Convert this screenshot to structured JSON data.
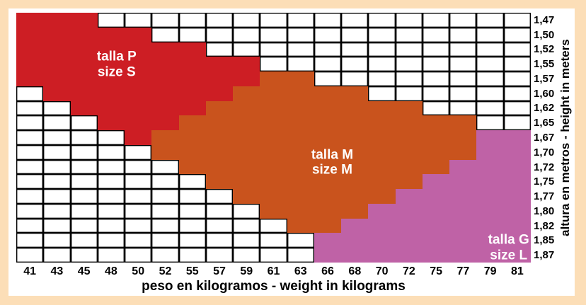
{
  "chart_data": {
    "type": "heatmap",
    "title": "",
    "xlabel": "peso en kilogramos - weight in kilograms",
    "ylabel": "altura en metros - height in meters",
    "x_categories": [
      "41",
      "43",
      "45",
      "48",
      "50",
      "52",
      "55",
      "57",
      "59",
      "61",
      "63",
      "66",
      "68",
      "70",
      "72",
      "75",
      "77",
      "79",
      "81"
    ],
    "y_categories": [
      "1,47",
      "1,50",
      "1,52",
      "1,55",
      "1,57",
      "1,60",
      "1,62",
      "1,65",
      "1,67",
      "1,70",
      "1,72",
      "1,75",
      "1,77",
      "1,80",
      "1,82",
      "1,85",
      "1,87"
    ],
    "grid_lines": true,
    "legend_position": "inside-regions",
    "colors": {
      "S": "#cd1e24",
      "M": "#c9531d",
      "L": "#bf62a6",
      "empty": "#ffffff",
      "grid": "#000000",
      "frame_background": "#fcdeb7",
      "panel_background": "#ffffff",
      "region_label_text": "#ffffff",
      "axis_text": "#000000"
    },
    "grid": [
      "SSS................",
      "SSSSS..............",
      "SSSSSSS............",
      "SSSSSSSSS..........",
      "SSSSSSSSSMM........",
      ".SSSSSSSMMMMM......",
      "..SSSSSMMMMMMMM....",
      "...SSSMMMMMMMMMMM..",
      "....SMMMMMMMMMMMMLL",
      ".....MMMMMMMMMMMMLL",
      "......MMMMMMMMMMLLL",
      ".......MMMMMMMMLLLL",
      "........MMMMMMLLLLL",
      ".........MMMMLLLLLL",
      "..........MMLLLLLLL",
      "...........LLLLLLLL",
      "...........LLLLLLLL"
    ],
    "regions": [
      {
        "code": "S",
        "label_line1": "talla P",
        "label_line2": "size S",
        "color": "#cd1e24"
      },
      {
        "code": "M",
        "label_line1": "talla M",
        "label_line2": "size M",
        "color": "#c9531d"
      },
      {
        "code": "L",
        "label_line1": "talla G",
        "label_line2": "size L",
        "color": "#bf62a6"
      }
    ]
  }
}
